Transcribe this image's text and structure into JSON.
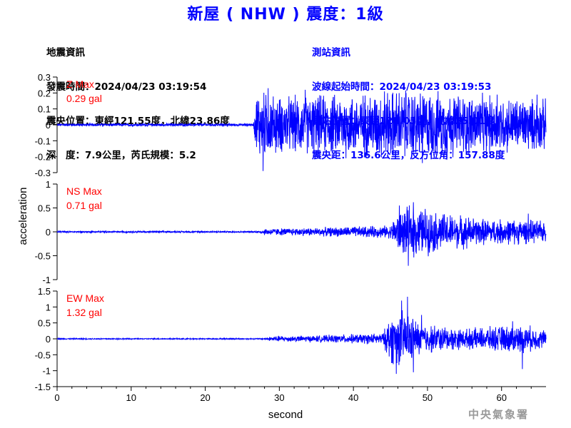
{
  "title": "新屋 ( NHW ) 震度：1級",
  "quake_info": {
    "heading": "地震資訊",
    "origin_time": "發震時間：2024/04/23 03:19:54",
    "epicenter": "震央位置：東經121.55度，北緯23.86度",
    "depth_magnitude": "深　度：7.9公里，芮氏規模：5.2"
  },
  "station_info": {
    "heading": "測站資訊",
    "wave_start": "波線起始時間：2024/04/23 03:19:53",
    "station_location": "測站位置：東經121.05度，北緯25.01度",
    "distance_azimuth": "震央距：136.6公里，反方位角：157.88度"
  },
  "footer": "中央氣象署",
  "colors": {
    "title": "#0000ff",
    "trace": "#0000ff",
    "max_label": "#ff0000",
    "station_text": "#0000ff"
  },
  "chart_data": {
    "type": "line",
    "xlabel": "second",
    "ylabel": "acceleration",
    "xlim": [
      0,
      66
    ],
    "xticks": [
      "0",
      "10",
      "20",
      "30",
      "40",
      "50",
      "60"
    ],
    "panels": [
      {
        "name": "Z",
        "max_label": "Z Max",
        "max_value": "0.29 gal",
        "ylim": [
          -0.3,
          0.3
        ],
        "yticks": [
          "0.3",
          "0.2",
          "0.1",
          "0",
          "-0.1",
          "-0.2",
          "-0.3"
        ],
        "envelope": [
          [
            0,
            0.01
          ],
          [
            26.5,
            0.01
          ],
          [
            27,
            0.25
          ],
          [
            30,
            0.2
          ],
          [
            40,
            0.22
          ],
          [
            46,
            0.25
          ],
          [
            55,
            0.22
          ],
          [
            60,
            0.2
          ],
          [
            66,
            0.18
          ]
        ],
        "peaks": [
          [
            27.8,
            -0.29
          ],
          [
            28.5,
            0.23
          ],
          [
            33.5,
            0.22
          ],
          [
            39.0,
            -0.21
          ],
          [
            44.2,
            0.21
          ],
          [
            47.1,
            0.2
          ],
          [
            49.3,
            -0.24
          ],
          [
            52.6,
            -0.22
          ],
          [
            59.4,
            0.19
          ],
          [
            64.8,
            0.19
          ]
        ]
      },
      {
        "name": "NS",
        "max_label": "NS Max",
        "max_value": "0.71 gal",
        "ylim": [
          -1,
          1
        ],
        "yticks": [
          "1",
          "0.5",
          "0",
          "-0.5",
          "-1"
        ],
        "envelope": [
          [
            0,
            0.02
          ],
          [
            27,
            0.02
          ],
          [
            28,
            0.08
          ],
          [
            35,
            0.1
          ],
          [
            45,
            0.15
          ],
          [
            46,
            0.5
          ],
          [
            48,
            0.6
          ],
          [
            52,
            0.45
          ],
          [
            58,
            0.3
          ],
          [
            62,
            0.3
          ],
          [
            66,
            0.25
          ]
        ],
        "peaks": [
          [
            47.4,
            -0.71
          ],
          [
            46.2,
            0.55
          ],
          [
            48.1,
            0.62
          ],
          [
            49.7,
            0.48
          ],
          [
            55.3,
            -0.35
          ],
          [
            63.6,
            0.38
          ]
        ]
      },
      {
        "name": "EW",
        "max_label": "EW Max",
        "max_value": "1.32 gal",
        "ylim": [
          -1.5,
          1.5
        ],
        "yticks": [
          "1.5",
          "1",
          "0.5",
          "0",
          "-0.5",
          "-1",
          "-1.5"
        ],
        "envelope": [
          [
            0,
            0.02
          ],
          [
            28,
            0.02
          ],
          [
            29,
            0.1
          ],
          [
            35,
            0.12
          ],
          [
            44,
            0.2
          ],
          [
            45,
            0.9
          ],
          [
            47,
            1.0
          ],
          [
            49,
            0.55
          ],
          [
            55,
            0.35
          ],
          [
            60,
            0.45
          ],
          [
            63,
            0.5
          ],
          [
            66,
            0.3
          ]
        ],
        "peaks": [
          [
            45.8,
            -1.1
          ],
          [
            46.5,
            1.2
          ],
          [
            47.3,
            1.32
          ],
          [
            48.1,
            -1.05
          ],
          [
            49.2,
            0.75
          ],
          [
            62.8,
            -0.95
          ],
          [
            61.5,
            0.55
          ]
        ]
      }
    ]
  }
}
